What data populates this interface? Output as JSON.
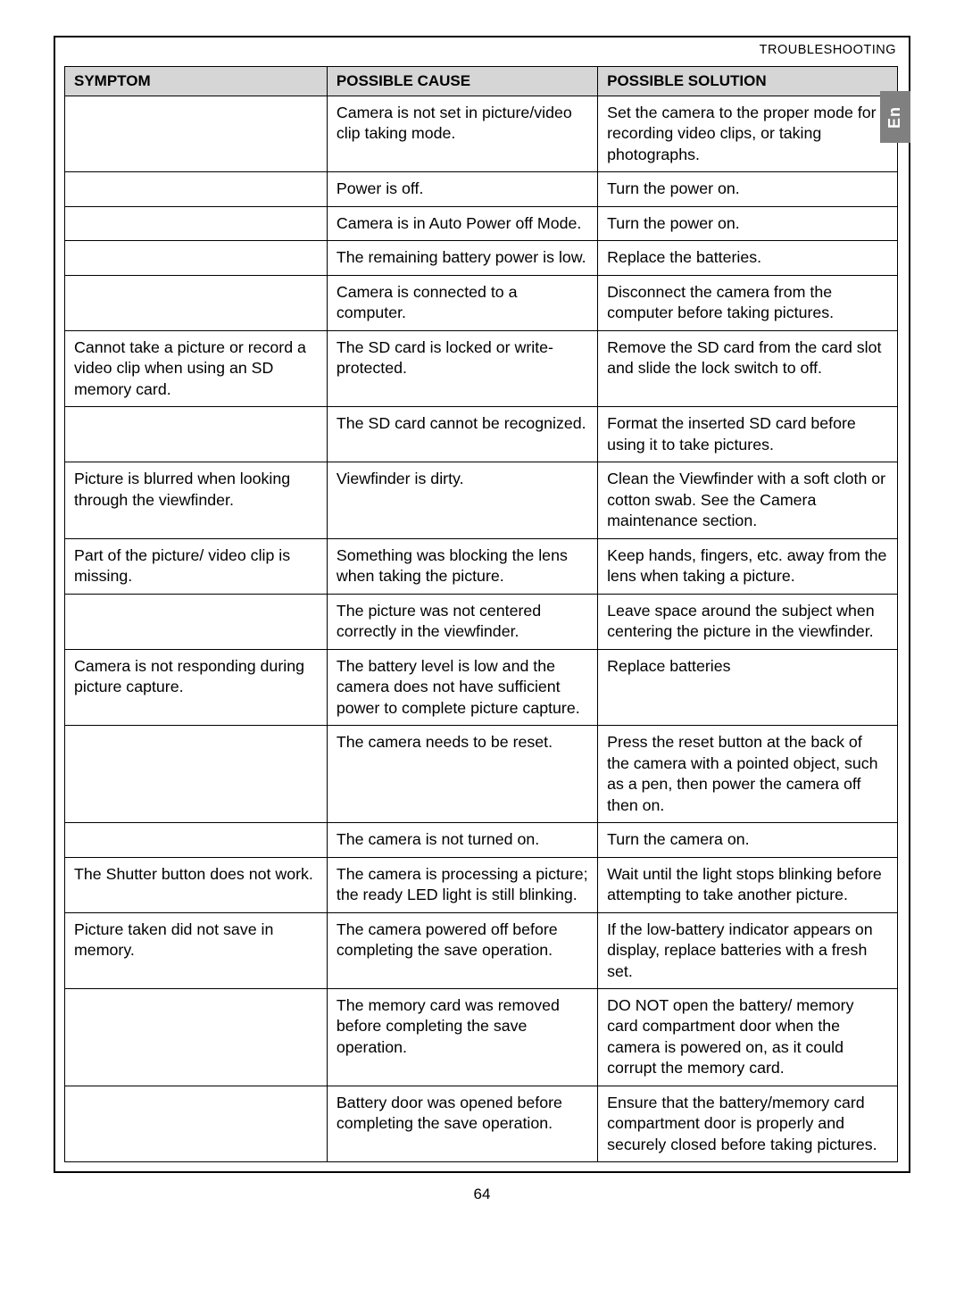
{
  "section_header": "TROUBLESHOOTING",
  "lang_tab": "En",
  "page_number": "64",
  "columns": {
    "symptom": "SYMPTOM",
    "cause": "POSSIBLE CAUSE",
    "solution": "POSSIBLE SOLUTION"
  },
  "rows": [
    {
      "symptom": "",
      "symptom_border": "no-bottom",
      "cause": "Camera is not set in picture/video clip taking mode.",
      "solution": "Set the camera to the proper mode for recording video clips, or taking photographs."
    },
    {
      "symptom": "",
      "symptom_border": "no-top no-bottom",
      "cause": "Power is off.",
      "solution": "Turn the power on."
    },
    {
      "symptom": "",
      "symptom_border": "no-top no-bottom",
      "cause": "Camera is in Auto Power off Mode.",
      "solution": "Turn the power on."
    },
    {
      "symptom": "",
      "symptom_border": "no-top no-bottom",
      "cause": "The remaining battery power is low.",
      "solution": "Replace the batteries."
    },
    {
      "symptom": "",
      "symptom_border": "no-top",
      "cause": "Camera is connected to a computer.",
      "solution": "Disconnect the camera from the computer before taking pictures."
    },
    {
      "symptom": "Cannot take a picture or record a video clip when using an SD memory card.",
      "symptom_border": "no-bottom",
      "cause": "The SD card is locked or write-protected.",
      "solution": "Remove the SD card from the card slot and slide the lock switch to off."
    },
    {
      "symptom": "",
      "symptom_border": "no-top",
      "cause": "The SD card cannot be recognized.",
      "solution": "Format the inserted SD card before using it to take pictures."
    },
    {
      "symptom": "Picture is blurred when looking through the viewfinder.",
      "symptom_border": "",
      "cause": "Viewfinder is dirty.",
      "solution": "Clean the Viewfinder with a soft cloth or cotton swab. See the Camera maintenance section."
    },
    {
      "symptom": "Part of the picture/ video clip is missing.",
      "symptom_border": "no-bottom",
      "cause": "Something was blocking the lens when taking the picture.",
      "solution": "Keep hands, fingers, etc. away from the lens when taking a picture."
    },
    {
      "symptom": "",
      "symptom_border": "no-top",
      "cause": "The picture was not centered correctly in the viewfinder.",
      "solution": "Leave space around the subject when centering the picture in the viewfinder."
    },
    {
      "symptom": "Camera is not responding during picture capture.",
      "symptom_border": "no-bottom",
      "cause": "The battery level is low and the camera does not have sufficient power to complete picture capture.",
      "solution": "Replace batteries"
    },
    {
      "symptom": "",
      "symptom_border": "no-top",
      "cause": "The camera needs to be reset.",
      "solution": "Press the reset button at the back of the camera with a pointed object, such as a pen, then power the camera off then on."
    },
    {
      "symptom": "",
      "symptom_border": "no-bottom",
      "cause": "The camera is not turned on.",
      "solution": "Turn the camera on."
    },
    {
      "symptom": "The Shutter button does not work.",
      "symptom_border": "no-top",
      "cause": "The camera is processing a picture; the ready LED light is still blinking.",
      "solution": "Wait until the light stops blinking before attempting to take another picture."
    },
    {
      "symptom": "Picture taken did not save in memory.",
      "symptom_border": "no-bottom",
      "cause": "The camera powered off before completing the save operation.",
      "solution": "If the low-battery indicator appears on display, replace batteries with a fresh set."
    },
    {
      "symptom": "",
      "symptom_border": "no-top no-bottom",
      "cause": "The memory card was removed before completing the save operation.",
      "solution": "DO NOT open the battery/ memory card compartment door when the camera is powered on, as it could corrupt the memory card."
    },
    {
      "symptom": "",
      "symptom_border": "no-top",
      "cause": "Battery door was opened before completing the save operation.",
      "solution": "Ensure that the battery/memory card compartment door is properly and securely closed before taking pictures."
    }
  ],
  "style": {
    "header_bg": "#d6d6d6",
    "border_color": "#000000",
    "body_font_size_pt": 13,
    "header_font_size_pt": 12.5,
    "lang_tab_bg": "#808080",
    "lang_tab_fg": "#ffffff"
  }
}
